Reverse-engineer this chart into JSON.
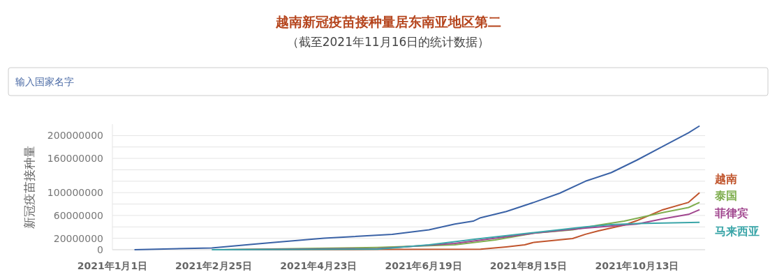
{
  "chart_data": {
    "type": "line",
    "title": "越南新冠疫苗接种量居东南亚地区第二",
    "subtitle": "（截至2021年11月16日的统计数据）",
    "ylabel": "新冠疫苗接种量",
    "annotations": [
      "输入国家名字"
    ],
    "xlim": [
      "2021-01-01",
      "2021-11-19"
    ],
    "xticks": [
      {
        "value": "2021-01-01",
        "label": "2021年1月1日"
      },
      {
        "value": "2021-02-25",
        "label": "2021年2月25日"
      },
      {
        "value": "2021-04-23",
        "label": "2021年4月23日"
      },
      {
        "value": "2021-06-19",
        "label": "2021年6月19日"
      },
      {
        "value": "2021-08-15",
        "label": "2021年8月15日"
      },
      {
        "value": "2021-10-13",
        "label": "2021年10月13日"
      }
    ],
    "ylim": [
      0,
      220000000
    ],
    "yticks": [
      0,
      20000000,
      {
        "value": 40000000,
        "label": null
      },
      60000000,
      {
        "value": 80000000,
        "label": null
      },
      100000000,
      {
        "value": 120000000,
        "label": null
      },
      {
        "value": 140000000,
        "label": null
      },
      160000000,
      {
        "value": 180000000,
        "label": null
      },
      200000000
    ],
    "grid": "y",
    "legend": "right",
    "marker": "none",
    "line_style": "solid",
    "series": [
      {
        "color": "#3a62a6",
        "x": [
          "2021-01-13",
          "2021-02-24",
          "2021-03-17",
          "2021-03-30",
          "2021-04-26",
          "2021-06-02",
          "2021-06-22",
          "2021-07-06",
          "2021-07-16",
          "2021-07-20",
          "2021-08-03",
          "2021-08-18",
          "2021-09-01",
          "2021-09-15",
          "2021-09-29",
          "2021-10-06",
          "2021-10-13",
          "2021-10-27",
          "2021-11-10",
          "2021-11-16"
        ],
        "values": [
          0,
          3000000,
          9000000,
          13000000,
          20000000,
          27000000,
          35000000,
          45000000,
          50000000,
          56000000,
          67000000,
          83000000,
          99000000,
          120000000,
          135000000,
          146000000,
          157000000,
          181000000,
          205000000,
          217000000
        ]
      },
      {
        "name": "越南",
        "color": "#c0542c",
        "x": [
          "2021-03-08",
          "2021-05-25",
          "2021-07-20",
          "2021-08-03",
          "2021-08-13",
          "2021-08-18",
          "2021-09-08",
          "2021-09-15",
          "2021-09-22",
          "2021-10-06",
          "2021-10-13",
          "2021-10-27",
          "2021-11-10",
          "2021-11-16"
        ],
        "values": [
          0,
          500000,
          1000000,
          5000000,
          8500000,
          13000000,
          19500000,
          27000000,
          33000000,
          43000000,
          51000000,
          70000000,
          83000000,
          100000000
        ]
      },
      {
        "name": "泰国",
        "color": "#7fae4f",
        "x": [
          "2021-02-28",
          "2021-05-25",
          "2021-07-06",
          "2021-07-28",
          "2021-08-18",
          "2021-09-08",
          "2021-09-22",
          "2021-10-06",
          "2021-10-27",
          "2021-11-10",
          "2021-11-16"
        ],
        "values": [
          0,
          4000000,
          8500000,
          17000000,
          29000000,
          35000000,
          43000000,
          50000000,
          65000000,
          74000000,
          83000000
        ]
      },
      {
        "name": "菲律宾",
        "color": "#a0458e",
        "x": [
          "2021-03-01",
          "2021-05-25",
          "2021-07-06",
          "2021-08-18",
          "2021-09-15",
          "2021-10-13",
          "2021-10-27",
          "2021-11-10",
          "2021-11-16"
        ],
        "values": [
          0,
          2000000,
          11000000,
          29000000,
          38000000,
          45000000,
          54000000,
          62000000,
          70000000
        ]
      },
      {
        "name": "马来西亚",
        "color": "#3aa5a8",
        "x": [
          "2021-02-24",
          "2021-05-25",
          "2021-06-22",
          "2021-07-20",
          "2021-08-18",
          "2021-09-15",
          "2021-09-29",
          "2021-10-13",
          "2021-11-16"
        ],
        "values": [
          0,
          1000000,
          8500000,
          19500000,
          30000000,
          40000000,
          44000000,
          46000000,
          48000000
        ]
      }
    ]
  }
}
